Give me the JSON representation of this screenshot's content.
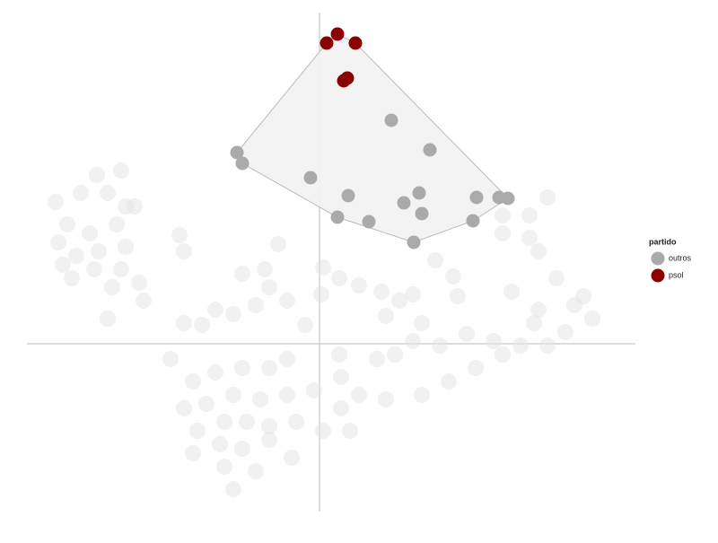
{
  "chart_data": {
    "type": "scatter",
    "legend_title": "partido",
    "legend_position": "right",
    "xlim": [
      -326,
      352
    ],
    "ylim": [
      -187,
      369
    ],
    "background_points": {
      "color": "#e4e4e4",
      "x": [
        -248,
        -221,
        -236,
        -294,
        -266,
        -216,
        -281,
        -256,
        -226,
        -291,
        -271,
        -246,
        -216,
        -286,
        -251,
        -221,
        -276,
        -201,
        -231,
        -196,
        -236,
        -206,
        -156,
        -151,
        -46,
        -61,
        -86,
        -56,
        -116,
        -151,
        -131,
        -96,
        -71,
        -36,
        -16,
        4,
        2,
        22,
        44,
        69,
        104,
        89,
        74,
        114,
        129,
        149,
        154,
        204,
        234,
        244,
        264,
        214,
        244,
        284,
        304,
        274,
        254,
        224,
        194,
        164,
        134,
        104,
        84,
        64,
        24,
        44,
        74,
        114,
        144,
        174,
        204,
        239,
        294,
        204,
        234,
        254,
        -166,
        -141,
        -116,
        -86,
        -56,
        -36,
        -151,
        -126,
        -96,
        -66,
        -36,
        -6,
        -136,
        -106,
        -81,
        -56,
        -26,
        4,
        34,
        -141,
        -111,
        -86,
        -56,
        -31,
        -106,
        -71,
        -96,
        24,
        22
      ],
      "y": [
        188,
        193,
        168,
        158,
        168,
        153,
        133,
        123,
        133,
        113,
        98,
        103,
        108,
        88,
        83,
        83,
        73,
        68,
        63,
        48,
        28,
        153,
        121,
        103,
        111,
        83,
        78,
        63,
        38,
        23,
        21,
        33,
        43,
        48,
        21,
        85,
        55,
        73,
        65,
        58,
        55,
        48,
        31,
        23,
        93,
        75,
        53,
        123,
        118,
        103,
        73,
        58,
        38,
        43,
        28,
        13,
        -2,
        -2,
        3,
        11,
        -2,
        3,
        -12,
        -17,
        -37,
        -57,
        -62,
        -57,
        -42,
        -27,
        -12,
        23,
        53,
        143,
        143,
        163,
        -17,
        -42,
        -32,
        -27,
        -27,
        -17,
        -72,
        -67,
        -57,
        -62,
        -57,
        -52,
        -97,
        -87,
        -87,
        -92,
        -87,
        -97,
        -97,
        -122,
        -112,
        -117,
        -107,
        -127,
        -137,
        -142,
        -162,
        -72,
        -12
      ]
    },
    "series": [
      {
        "name": "outros",
        "color": "#aaaaaa",
        "x": [
          80,
          123,
          -92,
          -86,
          -10,
          32,
          111,
          94,
          175,
          200,
          210,
          114,
          20,
          55,
          171,
          105
        ],
        "y": [
          249,
          216,
          213,
          201,
          185,
          165,
          168,
          157,
          163,
          163,
          162,
          145,
          141,
          136,
          137,
          113
        ]
      },
      {
        "name": "psol",
        "color": "#8b0000",
        "x": [
          8,
          20,
          40,
          27,
          31
        ],
        "y": [
          335,
          345,
          335,
          293,
          296
        ]
      }
    ]
  }
}
